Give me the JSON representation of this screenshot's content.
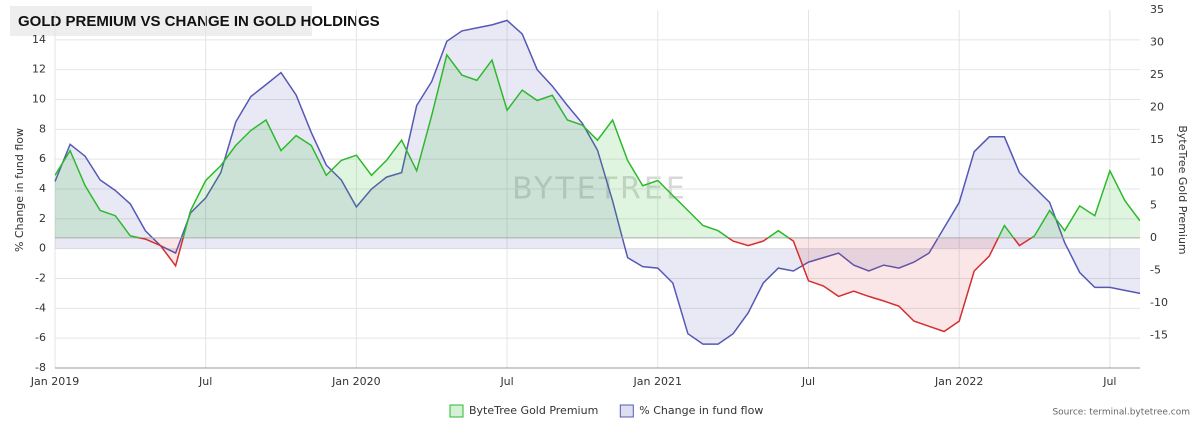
{
  "chart_data": {
    "type": "line",
    "title": "GOLD PREMIUM VS CHANGE IN GOLD HOLDINGS",
    "watermark": "BYTETREE",
    "source": "Source: terminal.bytetree.com",
    "y_label": "% Change in fund flow",
    "y2_label": "ByteTree Gold Premium",
    "grid": true,
    "legend": "bottom",
    "xlim": [
      2019,
      2022.6
    ],
    "xticks": [
      {
        "value": 2019,
        "label": "Jan 2019"
      },
      {
        "value": 2019.5,
        "label": "Jul"
      },
      {
        "value": 2020,
        "label": "Jan 2020"
      },
      {
        "value": 2020.5,
        "label": "Jul"
      },
      {
        "value": 2021,
        "label": "Jan 2021"
      },
      {
        "value": 2021.5,
        "label": "Jul"
      },
      {
        "value": 2022,
        "label": "Jan 2022"
      },
      {
        "value": 2022.5,
        "label": "Jul"
      }
    ],
    "ylim": [
      -8,
      16
    ],
    "yticks": [
      -8,
      -6,
      -4,
      -2,
      0,
      2,
      4,
      6,
      8,
      10,
      12,
      14
    ],
    "y2lim": [
      -20,
      35
    ],
    "y2ticks": [
      -15,
      -10,
      -5,
      0,
      5,
      10,
      15,
      20,
      25,
      30,
      35
    ],
    "x": [
      2019,
      2019.05,
      2019.1,
      2019.15,
      2019.2,
      2019.25,
      2019.3,
      2019.35,
      2019.4,
      2019.45,
      2019.5,
      2019.55,
      2019.6,
      2019.65,
      2019.7,
      2019.75,
      2019.8,
      2019.85,
      2019.9,
      2019.95,
      2020,
      2020.05,
      2020.1,
      2020.15,
      2020.2,
      2020.25,
      2020.3,
      2020.35,
      2020.4,
      2020.45,
      2020.5,
      2020.55,
      2020.6,
      2020.65,
      2020.7,
      2020.75,
      2020.8,
      2020.85,
      2020.9,
      2020.95,
      2021,
      2021.05,
      2021.1,
      2021.15,
      2021.2,
      2021.25,
      2021.3,
      2021.35,
      2021.4,
      2021.45,
      2021.5,
      2021.55,
      2021.6,
      2021.65,
      2021.7,
      2021.75,
      2021.8,
      2021.85,
      2021.9,
      2021.95,
      2022,
      2022.05,
      2022.1,
      2022.15,
      2022.2,
      2022.25,
      2022.3,
      2022.35,
      2022.4,
      2022.45,
      2022.5,
      2022.55,
      2022.6
    ],
    "series": [
      {
        "name": "ByteTree Gold Premium",
        "axis": "y2",
        "color": "#2db92d",
        "negative_color": "#d32f2f",
        "values": [
          9.6,
          13.4,
          8,
          4.2,
          3.4,
          0.3,
          -0.2,
          -1.2,
          -4.3,
          4.2,
          8.8,
          11.1,
          14.2,
          16.5,
          18.1,
          13.4,
          15.7,
          14.2,
          9.6,
          11.9,
          12.7,
          9.6,
          11.9,
          15,
          10.3,
          18.8,
          28.1,
          25,
          24.2,
          27.3,
          19.6,
          22.7,
          21.1,
          21.9,
          18.1,
          17.3,
          15,
          18.1,
          11.9,
          8,
          8.8,
          6.5,
          4.2,
          1.9,
          1.1,
          -0.5,
          -1.2,
          -0.5,
          1.1,
          -0.5,
          -6.6,
          -7.4,
          -9,
          -8.2,
          -9,
          -9.7,
          -10.5,
          -12.8,
          -13.6,
          -14.4,
          -12.8,
          -5.1,
          -2.8,
          1.9,
          -1.2,
          0.3,
          4.2,
          1.1,
          4.9,
          3.4,
          10.3,
          5.7,
          2.6
        ]
      },
      {
        "name": "% Change in fund flow",
        "axis": "y",
        "color": "#5558b5",
        "values": [
          4.5,
          7,
          6.2,
          4.6,
          3.9,
          3,
          1.2,
          0.2,
          -0.3,
          2.4,
          3.4,
          5.1,
          8.5,
          10.2,
          11,
          11.8,
          10.3,
          7.8,
          5.6,
          4.6,
          2.8,
          4,
          4.8,
          5.1,
          9.6,
          11.2,
          13.9,
          14.6,
          14.8,
          15,
          15.3,
          14.4,
          12,
          10.9,
          9.6,
          8.4,
          6.6,
          3.2,
          -0.6,
          -1.2,
          -1.3,
          -2.3,
          -5.7,
          -6.4,
          -6.4,
          -5.7,
          -4.3,
          -2.3,
          -1.3,
          -1.5,
          -0.9,
          -0.6,
          -0.3,
          -1.1,
          -1.5,
          -1.1,
          -1.3,
          -0.9,
          -0.3,
          1.4,
          3.1,
          6.5,
          7.5,
          7.5,
          5.1,
          4.1,
          3.1,
          0.4,
          -1.6,
          -2.6,
          -2.6,
          -2.8,
          -3
        ]
      }
    ]
  }
}
